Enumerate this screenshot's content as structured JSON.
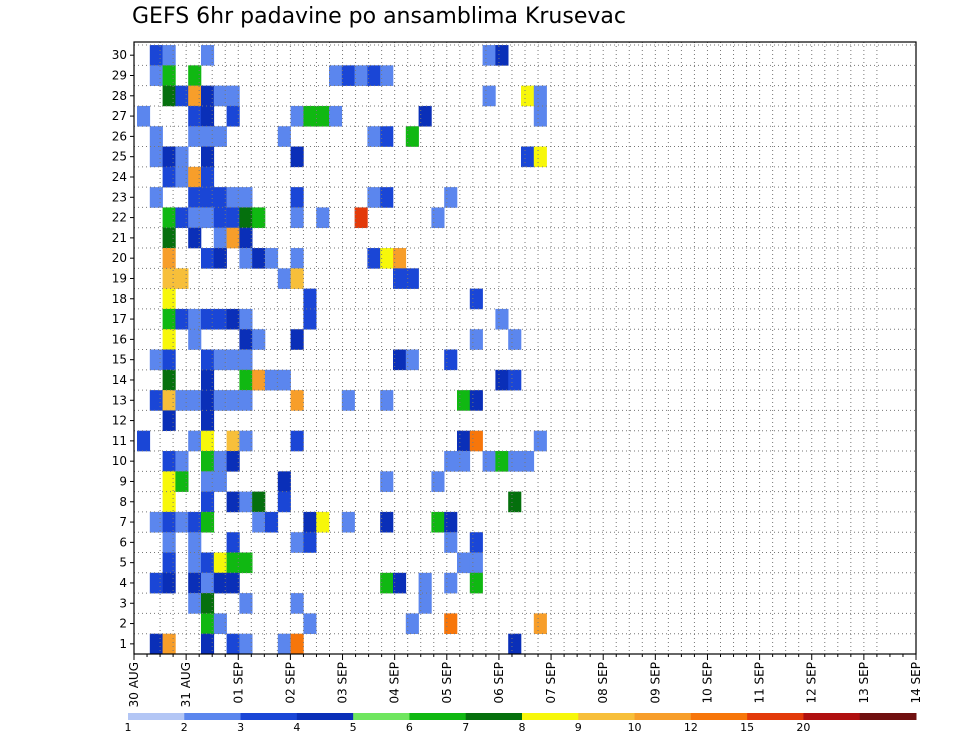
{
  "chart_data": {
    "type": "heatmap",
    "title": "GEFS 6hr padavine po ansamblima Krusevac",
    "xlabel": "",
    "ylabel": "",
    "members": [
      1,
      2,
      3,
      4,
      5,
      6,
      7,
      8,
      9,
      10,
      11,
      12,
      13,
      14,
      15,
      16,
      17,
      18,
      19,
      20,
      21,
      22,
      23,
      24,
      25,
      26,
      27,
      28,
      29,
      30
    ],
    "ylim": [
      0,
      30
    ],
    "x_steps": 61,
    "x_tick_labels": [
      "30 AUG",
      "31 AUG",
      "01 SEP",
      "02 SEP",
      "03 SEP",
      "04 SEP",
      "05 SEP",
      "06 SEP",
      "07 SEP",
      "08 SEP",
      "09 SEP",
      "10 SEP",
      "11 SEP",
      "12 SEP",
      "13 SEP",
      "14 SEP"
    ],
    "colorbar": {
      "boundaries": [
        "1",
        "2",
        "3",
        "4",
        "5",
        "6",
        "7",
        "8",
        "9",
        "10",
        "12",
        "15",
        "20"
      ],
      "colors": [
        "#b3c6f5",
        "#5b86ee",
        "#1a46d6",
        "#0a2fb8",
        "#6fe65f",
        "#10b812",
        "#05700d",
        "#f7f70a",
        "#f7bf3a",
        "#f79e2a",
        "#f7760a",
        "#e33a0a",
        "#b01010",
        "#701010"
      ]
    },
    "cells": [
      [
        30,
        1,
        2
      ],
      [
        30,
        2,
        1
      ],
      [
        30,
        5,
        1
      ],
      [
        30,
        27,
        1
      ],
      [
        30,
        28,
        3
      ],
      [
        29,
        1,
        1
      ],
      [
        29,
        2,
        5
      ],
      [
        29,
        4,
        5
      ],
      [
        29,
        15,
        1
      ],
      [
        29,
        16,
        2
      ],
      [
        29,
        17,
        1
      ],
      [
        29,
        18,
        2
      ],
      [
        29,
        19,
        1
      ],
      [
        28,
        2,
        6
      ],
      [
        28,
        3,
        2
      ],
      [
        28,
        4,
        9
      ],
      [
        28,
        5,
        3
      ],
      [
        28,
        6,
        1
      ],
      [
        28,
        7,
        1
      ],
      [
        28,
        27,
        1
      ],
      [
        28,
        30,
        7
      ],
      [
        28,
        31,
        1
      ],
      [
        27,
        0,
        1
      ],
      [
        27,
        4,
        2
      ],
      [
        27,
        5,
        3
      ],
      [
        27,
        7,
        2
      ],
      [
        27,
        12,
        1
      ],
      [
        27,
        13,
        5
      ],
      [
        27,
        14,
        5
      ],
      [
        27,
        15,
        1
      ],
      [
        27,
        22,
        3
      ],
      [
        27,
        31,
        1
      ],
      [
        26,
        1,
        1
      ],
      [
        26,
        4,
        1
      ],
      [
        26,
        5,
        1
      ],
      [
        26,
        6,
        1
      ],
      [
        26,
        11,
        1
      ],
      [
        26,
        18,
        1
      ],
      [
        26,
        19,
        2
      ],
      [
        26,
        21,
        5
      ],
      [
        25,
        1,
        1
      ],
      [
        25,
        2,
        3
      ],
      [
        25,
        3,
        1
      ],
      [
        25,
        5,
        3
      ],
      [
        25,
        12,
        3
      ],
      [
        25,
        30,
        2
      ],
      [
        25,
        31,
        7
      ],
      [
        24,
        2,
        2
      ],
      [
        24,
        3,
        1
      ],
      [
        24,
        4,
        9
      ],
      [
        24,
        5,
        2
      ],
      [
        23,
        1,
        1
      ],
      [
        23,
        4,
        2
      ],
      [
        23,
        5,
        2
      ],
      [
        23,
        6,
        2
      ],
      [
        23,
        7,
        1
      ],
      [
        23,
        8,
        1
      ],
      [
        23,
        12,
        2
      ],
      [
        23,
        18,
        1
      ],
      [
        23,
        19,
        2
      ],
      [
        23,
        24,
        1
      ],
      [
        22,
        2,
        5
      ],
      [
        22,
        3,
        2
      ],
      [
        22,
        4,
        1
      ],
      [
        22,
        5,
        1
      ],
      [
        22,
        6,
        2
      ],
      [
        22,
        7,
        2
      ],
      [
        22,
        8,
        6
      ],
      [
        22,
        9,
        5
      ],
      [
        22,
        12,
        1
      ],
      [
        22,
        14,
        1
      ],
      [
        22,
        17,
        11
      ],
      [
        22,
        23,
        1
      ],
      [
        21,
        2,
        6
      ],
      [
        21,
        4,
        3
      ],
      [
        21,
        6,
        1
      ],
      [
        21,
        7,
        9
      ],
      [
        21,
        8,
        3
      ],
      [
        20,
        2,
        9
      ],
      [
        20,
        5,
        2
      ],
      [
        20,
        6,
        3
      ],
      [
        20,
        8,
        1
      ],
      [
        20,
        9,
        3
      ],
      [
        20,
        10,
        1
      ],
      [
        20,
        12,
        1
      ],
      [
        20,
        18,
        2
      ],
      [
        20,
        19,
        7
      ],
      [
        20,
        20,
        9
      ],
      [
        19,
        2,
        8
      ],
      [
        19,
        3,
        8
      ],
      [
        19,
        11,
        1
      ],
      [
        19,
        12,
        8
      ],
      [
        19,
        20,
        2
      ],
      [
        19,
        21,
        2
      ],
      [
        18,
        2,
        7
      ],
      [
        18,
        13,
        2
      ],
      [
        18,
        26,
        2
      ],
      [
        17,
        2,
        5
      ],
      [
        17,
        3,
        2
      ],
      [
        17,
        4,
        1
      ],
      [
        17,
        5,
        2
      ],
      [
        17,
        6,
        2
      ],
      [
        17,
        7,
        3
      ],
      [
        17,
        8,
        1
      ],
      [
        17,
        13,
        2
      ],
      [
        17,
        28,
        1
      ],
      [
        16,
        2,
        7
      ],
      [
        16,
        4,
        1
      ],
      [
        16,
        8,
        3
      ],
      [
        16,
        9,
        1
      ],
      [
        16,
        12,
        3
      ],
      [
        16,
        26,
        1
      ],
      [
        16,
        29,
        1
      ],
      [
        15,
        1,
        1
      ],
      [
        15,
        2,
        2
      ],
      [
        15,
        5,
        2
      ],
      [
        15,
        6,
        1
      ],
      [
        15,
        7,
        1
      ],
      [
        15,
        8,
        1
      ],
      [
        15,
        20,
        3
      ],
      [
        15,
        21,
        1
      ],
      [
        15,
        24,
        2
      ],
      [
        14,
        2,
        6
      ],
      [
        14,
        5,
        3
      ],
      [
        14,
        8,
        5
      ],
      [
        14,
        9,
        9
      ],
      [
        14,
        10,
        1
      ],
      [
        14,
        11,
        1
      ],
      [
        14,
        28,
        3
      ],
      [
        14,
        29,
        2
      ],
      [
        13,
        1,
        2
      ],
      [
        13,
        2,
        8
      ],
      [
        13,
        3,
        1
      ],
      [
        13,
        4,
        1
      ],
      [
        13,
        5,
        3
      ],
      [
        13,
        6,
        1
      ],
      [
        13,
        7,
        1
      ],
      [
        13,
        8,
        1
      ],
      [
        13,
        12,
        9
      ],
      [
        13,
        16,
        1
      ],
      [
        13,
        19,
        1
      ],
      [
        13,
        25,
        5
      ],
      [
        13,
        26,
        3
      ],
      [
        12,
        2,
        3
      ],
      [
        12,
        5,
        3
      ],
      [
        11,
        0,
        2
      ],
      [
        11,
        4,
        1
      ],
      [
        11,
        5,
        7
      ],
      [
        11,
        7,
        8
      ],
      [
        11,
        8,
        1
      ],
      [
        11,
        12,
        2
      ],
      [
        11,
        25,
        3
      ],
      [
        11,
        26,
        10
      ],
      [
        11,
        31,
        1
      ],
      [
        10,
        2,
        2
      ],
      [
        10,
        3,
        1
      ],
      [
        10,
        5,
        5
      ],
      [
        10,
        6,
        1
      ],
      [
        10,
        7,
        3
      ],
      [
        10,
        24,
        1
      ],
      [
        10,
        25,
        1
      ],
      [
        10,
        27,
        1
      ],
      [
        10,
        28,
        5
      ],
      [
        10,
        29,
        1
      ],
      [
        10,
        30,
        1
      ],
      [
        9,
        2,
        7
      ],
      [
        9,
        3,
        5
      ],
      [
        9,
        5,
        1
      ],
      [
        9,
        6,
        1
      ],
      [
        9,
        11,
        3
      ],
      [
        9,
        19,
        1
      ],
      [
        9,
        23,
        1
      ],
      [
        8,
        2,
        7
      ],
      [
        8,
        5,
        2
      ],
      [
        8,
        7,
        3
      ],
      [
        8,
        8,
        1
      ],
      [
        8,
        9,
        6
      ],
      [
        8,
        11,
        2
      ],
      [
        8,
        29,
        6
      ],
      [
        7,
        1,
        1
      ],
      [
        7,
        2,
        2
      ],
      [
        7,
        3,
        1
      ],
      [
        7,
        4,
        2
      ],
      [
        7,
        5,
        5
      ],
      [
        7,
        9,
        1
      ],
      [
        7,
        10,
        2
      ],
      [
        7,
        13,
        3
      ],
      [
        7,
        14,
        7
      ],
      [
        7,
        16,
        1
      ],
      [
        7,
        19,
        3
      ],
      [
        7,
        23,
        5
      ],
      [
        7,
        24,
        3
      ],
      [
        6,
        2,
        1
      ],
      [
        6,
        4,
        1
      ],
      [
        6,
        7,
        2
      ],
      [
        6,
        12,
        1
      ],
      [
        6,
        13,
        2
      ],
      [
        6,
        24,
        1
      ],
      [
        6,
        26,
        2
      ],
      [
        5,
        2,
        2
      ],
      [
        5,
        4,
        1
      ],
      [
        5,
        5,
        2
      ],
      [
        5,
        6,
        7
      ],
      [
        5,
        7,
        5
      ],
      [
        5,
        8,
        5
      ],
      [
        5,
        25,
        1
      ],
      [
        5,
        26,
        1
      ],
      [
        4,
        1,
        2
      ],
      [
        4,
        2,
        3
      ],
      [
        4,
        4,
        3
      ],
      [
        4,
        5,
        1
      ],
      [
        4,
        6,
        3
      ],
      [
        4,
        7,
        3
      ],
      [
        4,
        19,
        5
      ],
      [
        4,
        20,
        3
      ],
      [
        4,
        22,
        1
      ],
      [
        4,
        24,
        1
      ],
      [
        4,
        26,
        5
      ],
      [
        3,
        4,
        1
      ],
      [
        3,
        5,
        6
      ],
      [
        3,
        8,
        1
      ],
      [
        3,
        12,
        1
      ],
      [
        3,
        22,
        1
      ],
      [
        2,
        5,
        5
      ],
      [
        2,
        6,
        1
      ],
      [
        2,
        13,
        1
      ],
      [
        2,
        21,
        1
      ],
      [
        2,
        24,
        10
      ],
      [
        2,
        31,
        9
      ],
      [
        1,
        1,
        3
      ],
      [
        1,
        2,
        9
      ],
      [
        1,
        5,
        3
      ],
      [
        1,
        7,
        2
      ],
      [
        1,
        8,
        1
      ],
      [
        1,
        11,
        1
      ],
      [
        1,
        12,
        10
      ],
      [
        1,
        29,
        3
      ]
    ]
  }
}
